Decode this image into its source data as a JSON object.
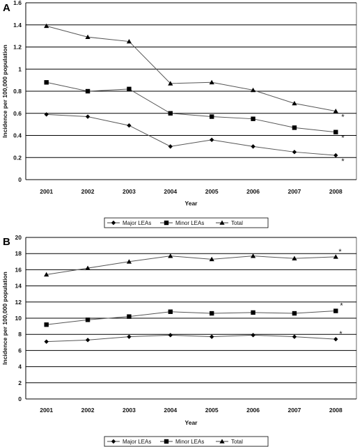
{
  "chart_data": [
    {
      "type": "line",
      "panel_label": "A",
      "categories": [
        "2001",
        "2002",
        "2003",
        "2004",
        "2005",
        "2006",
        "2007",
        "2008"
      ],
      "xlabel": "Year",
      "ylabel": "Incidence per 100,000 population",
      "ylim": [
        0,
        1.6
      ],
      "yticks": [
        "0",
        "0.2",
        "0.4",
        "0.6",
        "0.8",
        "1",
        "1.2",
        "1.4",
        "1.6"
      ],
      "grid": true,
      "legend_position": "bottom",
      "annotation": "*",
      "series": [
        {
          "name": "Major LEAs",
          "marker": "diamond",
          "values": [
            0.59,
            0.57,
            0.49,
            0.3,
            0.36,
            0.3,
            0.25,
            0.22
          ]
        },
        {
          "name": "Minor LEAs",
          "marker": "square",
          "values": [
            0.88,
            0.8,
            0.82,
            0.6,
            0.57,
            0.55,
            0.47,
            0.43
          ]
        },
        {
          "name": "Total",
          "marker": "triangle",
          "values": [
            1.39,
            1.29,
            1.25,
            0.87,
            0.88,
            0.81,
            0.69,
            0.62
          ]
        }
      ]
    },
    {
      "type": "line",
      "panel_label": "B",
      "categories": [
        "2001",
        "2002",
        "2003",
        "2004",
        "2005",
        "2006",
        "2007",
        "2008"
      ],
      "xlabel": "Year",
      "ylabel": "Incidence per 100,000 population",
      "ylim": [
        0,
        20
      ],
      "yticks": [
        "0",
        "2",
        "4",
        "6",
        "8",
        "10",
        "12",
        "14",
        "16",
        "18",
        "20"
      ],
      "grid": true,
      "legend_position": "bottom",
      "annotation": "*",
      "series": [
        {
          "name": "Major LEAs",
          "marker": "diamond",
          "values": [
            7.1,
            7.3,
            7.7,
            7.9,
            7.7,
            7.9,
            7.7,
            7.4
          ]
        },
        {
          "name": "Minor LEAs",
          "marker": "square",
          "values": [
            9.2,
            9.8,
            10.2,
            10.8,
            10.6,
            10.7,
            10.6,
            10.9
          ]
        },
        {
          "name": "Total",
          "marker": "triangle",
          "values": [
            15.4,
            16.2,
            17.0,
            17.7,
            17.3,
            17.7,
            17.4,
            17.6
          ]
        }
      ]
    }
  ]
}
